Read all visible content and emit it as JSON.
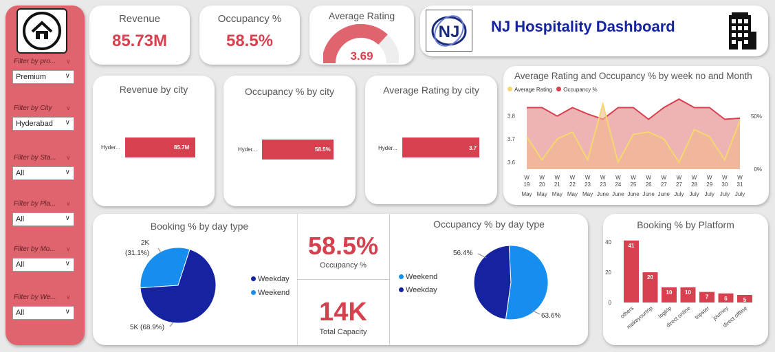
{
  "sidebar": {
    "filters": [
      {
        "label": "Filter by pro...",
        "value": "Premium"
      },
      {
        "label": "Filter by City",
        "value": "Hyderabad"
      },
      {
        "label": "Filter by Sta...",
        "value": "All"
      },
      {
        "label": "Filter by Pla...",
        "value": "All"
      },
      {
        "label": "Filter by Mo...",
        "value": "All"
      },
      {
        "label": "Filter by We...",
        "value": "All"
      }
    ]
  },
  "kpis": {
    "revenue": {
      "title": "Revenue",
      "value": "85.73M"
    },
    "occupancy": {
      "title": "Occupancy %",
      "value": "58.5%"
    },
    "rating": {
      "title": "Average Rating",
      "value": "3.69",
      "gauge_fraction": 0.738
    }
  },
  "header": {
    "logo_text": "NJ",
    "title": "NJ Hospitality Dashboard"
  },
  "colors": {
    "accent": "#d6404f",
    "dark_blue": "#1523a0",
    "light_blue": "#168ef0",
    "yellow": "#f5d76e"
  },
  "revenue_by_city": {
    "title": "Revenue by city",
    "category": "Hyder...",
    "label": "85.7M"
  },
  "occupancy_by_city": {
    "title": "Occupancy % by city",
    "category": "Hyder...",
    "label": "58.5%"
  },
  "rating_by_city": {
    "title": "Average Rating by city",
    "category": "Hyder...",
    "label": "3.7"
  },
  "weekly": {
    "title": "Average Rating and Occupancy % by week no and Month",
    "legend": [
      "Average Rating",
      "Occupancy %"
    ],
    "y_left_ticks": [
      "3.8",
      "3.7",
      "3.6"
    ],
    "y_right_ticks": [
      "50%",
      "0%"
    ],
    "weeks": [
      "W 19",
      "W 20",
      "W 21",
      "W 22",
      "W 23",
      "W 23",
      "W 24",
      "W 25",
      "W 26",
      "W 27",
      "W 27",
      "W 28",
      "W 29",
      "W 30",
      "W 31"
    ],
    "months": [
      "May",
      "May",
      "May",
      "May",
      "May",
      "June",
      "June",
      "June",
      "June",
      "June",
      "July",
      "July",
      "July",
      "July",
      "July"
    ]
  },
  "booking_day": {
    "title": "Booking % by day type",
    "labels": [
      "2K",
      "(31.1%)",
      "5K (68.9%)"
    ],
    "legend": [
      "Weekday",
      "Weekend"
    ]
  },
  "center_kpi": {
    "occ_value": "58.5%",
    "occ_label": "Occupancy %",
    "cap_value": "14K",
    "cap_label": "Total Capacity"
  },
  "occ_day": {
    "title": "Occupancy % by day type",
    "legend": [
      "Weekend",
      "Weekday"
    ],
    "labels": [
      "56.4%",
      "63.6%"
    ]
  },
  "platform": {
    "title": "Booking % by Platform",
    "y_ticks": [
      "40",
      "20",
      "0"
    ]
  },
  "chart_data": [
    {
      "type": "bar",
      "title": "Revenue by city",
      "categories": [
        "Hyder..."
      ],
      "values": [
        85.7
      ]
    },
    {
      "type": "bar",
      "title": "Occupancy % by city",
      "categories": [
        "Hyder..."
      ],
      "values": [
        58.5
      ]
    },
    {
      "type": "bar",
      "title": "Average Rating by city",
      "categories": [
        "Hyder..."
      ],
      "values": [
        3.7
      ]
    },
    {
      "type": "area",
      "title": "Average Rating and Occupancy % by week no and Month",
      "x": [
        "W 19 May",
        "W 20 May",
        "W 21 May",
        "W 22 May",
        "W 23 May",
        "W 23 June",
        "W 24 June",
        "W 25 June",
        "W 26 June",
        "W 27 June",
        "W 27 July",
        "W 28 July",
        "W 29 July",
        "W 30 July",
        "W 31 July"
      ],
      "series": [
        {
          "name": "Average Rating",
          "values": [
            3.71,
            3.61,
            3.7,
            3.73,
            3.61,
            3.85,
            3.6,
            3.72,
            3.73,
            3.7,
            3.6,
            3.74,
            3.71,
            3.61,
            3.78
          ]
        },
        {
          "name": "Occupancy %",
          "values": [
            58,
            58,
            50,
            58,
            52,
            47,
            58,
            58,
            47,
            58,
            66,
            58,
            58,
            47,
            48
          ]
        }
      ],
      "ylim_left": [
        3.57,
        3.89
      ],
      "ylim_right": [
        0,
        70
      ]
    },
    {
      "type": "pie",
      "title": "Booking % by day type",
      "categories": [
        "Weekday",
        "Weekend"
      ],
      "values": [
        68.9,
        31.1
      ]
    },
    {
      "type": "pie",
      "title": "Occupancy % by day type",
      "categories": [
        "Weekday",
        "Weekend"
      ],
      "values": [
        63.6,
        56.4
      ]
    },
    {
      "type": "bar",
      "title": "Booking % by Platform",
      "categories": [
        "others",
        "makeyourtrip",
        "logtrip",
        "direct online",
        "tripster",
        "journey",
        "direct offline"
      ],
      "values": [
        41,
        20,
        10,
        10,
        7,
        6,
        5
      ],
      "ylim": [
        0,
        45
      ]
    }
  ]
}
